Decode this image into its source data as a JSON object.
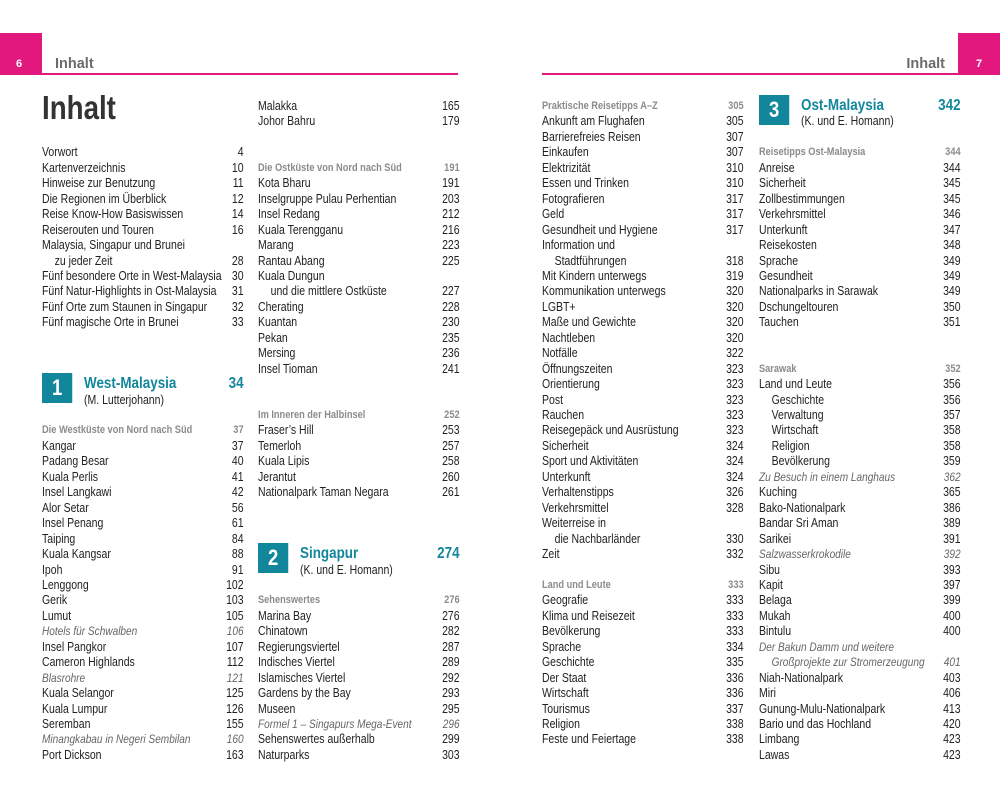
{
  "left_page": {
    "number": "6",
    "header": "Inhalt"
  },
  "right_page": {
    "number": "7",
    "header": "Inhalt"
  },
  "title": "Inhalt",
  "columns": [
    [
      {
        "text": "Vorwort",
        "page": 4
      },
      {
        "text": "Kartenverzeichnis",
        "page": 10
      },
      {
        "text": "Hinweise zur Benutzung",
        "page": 11
      },
      {
        "text": "Die Regionen im Überblick",
        "page": 12
      },
      {
        "text": "Reise Know-How Basiswissen",
        "page": 14
      },
      {
        "text": "Reiserouten und Touren",
        "page": 16
      },
      {
        "text": "Malaysia, Singapur und Brunei",
        "page": null
      },
      {
        "text": "zu jeder Zeit",
        "page": 28
      },
      {
        "text": "Fünf besondere Orte in West-Malaysia",
        "page": 30
      },
      {
        "text": "Fünf Natur-Highlights in Ost-Malaysia",
        "page": 31
      },
      {
        "text": "Fünf Orte zum Staunen in Singapur",
        "page": 32
      },
      {
        "text": "Fünf magische Orte in Brunei",
        "page": 33
      },
      {
        "number": "1",
        "text": "West-Malaysia",
        "page": 34,
        "author": "(M. Lutterjohann)"
      },
      {
        "text": "Die Westküste von Nord nach Süd",
        "page": 37
      },
      {
        "text": "Kangar",
        "page": 37
      },
      {
        "text": "Padang Besar",
        "page": 40
      },
      {
        "text": "Kuala Perlis",
        "page": 41
      },
      {
        "text": "Insel Langkawi",
        "page": 42
      },
      {
        "text": "Alor Setar",
        "page": 56
      },
      {
        "text": "Insel Penang",
        "page": 61
      },
      {
        "text": "Taiping",
        "page": 84
      },
      {
        "text": "Kuala Kangsar",
        "page": 88
      },
      {
        "text": "Ipoh",
        "page": 91
      },
      {
        "text": "Lenggong",
        "page": 102
      },
      {
        "text": "Gerik",
        "page": 103
      },
      {
        "text": "Lumut",
        "page": 105
      },
      {
        "text": "Hotels für Schwalben",
        "page": 106
      },
      {
        "text": "Insel Pangkor",
        "page": 107
      },
      {
        "text": "Cameron Highlands",
        "page": 112
      },
      {
        "text": "Blasrohre",
        "page": 121
      },
      {
        "text": "Kuala Selangor",
        "page": 125
      },
      {
        "text": "Kuala Lumpur",
        "page": 126
      },
      {
        "text": "Seremban",
        "page": 155
      },
      {
        "text": "Minangkabau in Negeri Sembilan",
        "page": 160
      },
      {
        "text": "Port Dickson",
        "page": 163
      }
    ],
    [
      {
        "text": "Malakka",
        "page": 165
      },
      {
        "text": "Johor Bahru",
        "page": 179
      },
      {
        "text": "Die Ostküste von Nord nach Süd",
        "page": 191
      },
      {
        "text": "Kota Bharu",
        "page": 191
      },
      {
        "text": "Inselgruppe Pulau Perhentian",
        "page": 203
      },
      {
        "text": "Insel Redang",
        "page": 212
      },
      {
        "text": "Kuala Terengganu",
        "page": 216
      },
      {
        "text": "Marang",
        "page": 223
      },
      {
        "text": "Rantau Abang",
        "page": 225
      },
      {
        "text": "Kuala Dungun",
        "page": null
      },
      {
        "text": "und die mittlere Ostküste",
        "page": 227
      },
      {
        "text": "Cherating",
        "page": 228
      },
      {
        "text": "Kuantan",
        "page": 230
      },
      {
        "text": "Pekan",
        "page": 235
      },
      {
        "text": "Mersing",
        "page": 236
      },
      {
        "text": "Insel Tioman",
        "page": 241
      },
      {
        "text": "Im Inneren der Halbinsel",
        "page": 252
      },
      {
        "text": "Fraser’s Hill",
        "page": 253
      },
      {
        "text": "Temerloh",
        "page": 257
      },
      {
        "text": "Kuala Lipis",
        "page": 258
      },
      {
        "text": "Jerantut",
        "page": 260
      },
      {
        "text": "Nationalpark Taman Negara",
        "page": 261
      },
      {
        "number": "2",
        "text": "Singapur",
        "page": 274,
        "author": "(K. und E. Homann)"
      },
      {
        "text": "Sehenswertes",
        "page": 276
      },
      {
        "text": "Marina Bay",
        "page": 276
      },
      {
        "text": "Chinatown",
        "page": 282
      },
      {
        "text": "Regierungsviertel",
        "page": 287
      },
      {
        "text": "Indisches Viertel",
        "page": 289
      },
      {
        "text": "Islamisches Viertel",
        "page": 292
      },
      {
        "text": "Gardens by the Bay",
        "page": 293
      },
      {
        "text": "Museen",
        "page": 295
      },
      {
        "text": "Formel 1 – Singapurs Mega-Event",
        "page": 296
      },
      {
        "text": "Sehenswertes außerhalb",
        "page": 299
      },
      {
        "text": "Naturparks",
        "page": 303
      }
    ],
    [
      {
        "text": "Praktische Reisetipps A–Z",
        "page": 305
      },
      {
        "text": "Ankunft am Flughafen",
        "page": 305
      },
      {
        "text": "Barrierefreies Reisen",
        "page": 307
      },
      {
        "text": "Einkaufen",
        "page": 307
      },
      {
        "text": "Elektrizität",
        "page": 310
      },
      {
        "text": "Essen und Trinken",
        "page": 310
      },
      {
        "text": "Fotografieren",
        "page": 317
      },
      {
        "text": "Geld",
        "page": 317
      },
      {
        "text": "Gesundheit und Hygiene",
        "page": 317
      },
      {
        "text": "Information und",
        "page": null
      },
      {
        "text": "Stadtführungen",
        "page": 318
      },
      {
        "text": "Mit Kindern unterwegs",
        "page": 319
      },
      {
        "text": "Kommunikation unterwegs",
        "page": 320
      },
      {
        "text": "LGBT+",
        "page": 320
      },
      {
        "text": "Maße und Gewichte",
        "page": 320
      },
      {
        "text": "Nachtleben",
        "page": 320
      },
      {
        "text": "Notfälle",
        "page": 322
      },
      {
        "text": "Öffnungszeiten",
        "page": 323
      },
      {
        "text": "Orientierung",
        "page": 323
      },
      {
        "text": "Post",
        "page": 323
      },
      {
        "text": "Rauchen",
        "page": 323
      },
      {
        "text": "Reisegepäck und Ausrüstung",
        "page": 323
      },
      {
        "text": "Sicherheit",
        "page": 324
      },
      {
        "text": "Sport und Aktivitäten",
        "page": 324
      },
      {
        "text": "Unterkunft",
        "page": 324
      },
      {
        "text": "Verhaltenstipps",
        "page": 326
      },
      {
        "text": "Verkehrsmittel",
        "page": 328
      },
      {
        "text": "Weiterreise in",
        "page": null
      },
      {
        "text": "die Nachbarländer",
        "page": 330
      },
      {
        "text": "Zeit",
        "page": 332
      },
      {
        "text": "Land und Leute",
        "page": 333
      },
      {
        "text": "Geografie",
        "page": 333
      },
      {
        "text": "Klima und Reisezeit",
        "page": 333
      },
      {
        "text": "Bevölkerung",
        "page": 333
      },
      {
        "text": "Sprache",
        "page": 334
      },
      {
        "text": "Geschichte",
        "page": 335
      },
      {
        "text": "Der Staat",
        "page": 336
      },
      {
        "text": "Wirtschaft",
        "page": 336
      },
      {
        "text": "Tourismus",
        "page": 337
      },
      {
        "text": "Religion",
        "page": 338
      },
      {
        "text": "Feste und Feiertage",
        "page": 338
      }
    ],
    [
      {
        "number": "3",
        "text": "Ost-Malaysia",
        "page": 342,
        "author": "(K. und E. Homann)"
      },
      {
        "text": "Reisetipps Ost-Malaysia",
        "page": 344
      },
      {
        "text": "Anreise",
        "page": 344
      },
      {
        "text": "Sicherheit",
        "page": 345
      },
      {
        "text": "Zollbestimmungen",
        "page": 345
      },
      {
        "text": "Verkehrsmittel",
        "page": 346
      },
      {
        "text": "Unterkunft",
        "page": 347
      },
      {
        "text": "Reisekosten",
        "page": 348
      },
      {
        "text": "Sprache",
        "page": 349
      },
      {
        "text": "Gesundheit",
        "page": 349
      },
      {
        "text": "Nationalparks in Sarawak",
        "page": 349
      },
      {
        "text": "Dschungeltouren",
        "page": 350
      },
      {
        "text": "Tauchen",
        "page": 351
      },
      {
        "text": "Sarawak",
        "page": 352
      },
      {
        "text": "Land und Leute",
        "page": 356
      },
      {
        "text": "Geschichte",
        "page": 356
      },
      {
        "text": "Verwaltung",
        "page": 357
      },
      {
        "text": "Wirtschaft",
        "page": 358
      },
      {
        "text": "Religion",
        "page": 358
      },
      {
        "text": "Bevölkerung",
        "page": 359
      },
      {
        "text": "Zu Besuch in einem Langhaus",
        "page": 362
      },
      {
        "text": "Kuching",
        "page": 365
      },
      {
        "text": "Bako-Nationalpark",
        "page": 386
      },
      {
        "text": "Bandar Sri Aman",
        "page": 389
      },
      {
        "text": "Sarikei",
        "page": 391
      },
      {
        "text": "Salzwasserkrokodile",
        "page": 392
      },
      {
        "text": "Sibu",
        "page": 393
      },
      {
        "text": "Kapit",
        "page": 397
      },
      {
        "text": "Belaga",
        "page": 399
      },
      {
        "text": "Mukah",
        "page": 400
      },
      {
        "text": "Bintulu",
        "page": 400
      },
      {
        "text": "Der Bakun Damm und weitere",
        "page": null
      },
      {
        "text": "Großprojekte zur Stromerzeugung",
        "page": 401
      },
      {
        "text": "Niah-Nationalpark",
        "page": 403
      },
      {
        "text": "Miri",
        "page": 406
      },
      {
        "text": "Gunung-Mulu-Nationalpark",
        "page": 413
      },
      {
        "text": "Bario und das Hochland",
        "page": 420
      },
      {
        "text": "Limbang",
        "page": 423
      },
      {
        "text": "Lawas",
        "page": 423
      }
    ]
  ]
}
